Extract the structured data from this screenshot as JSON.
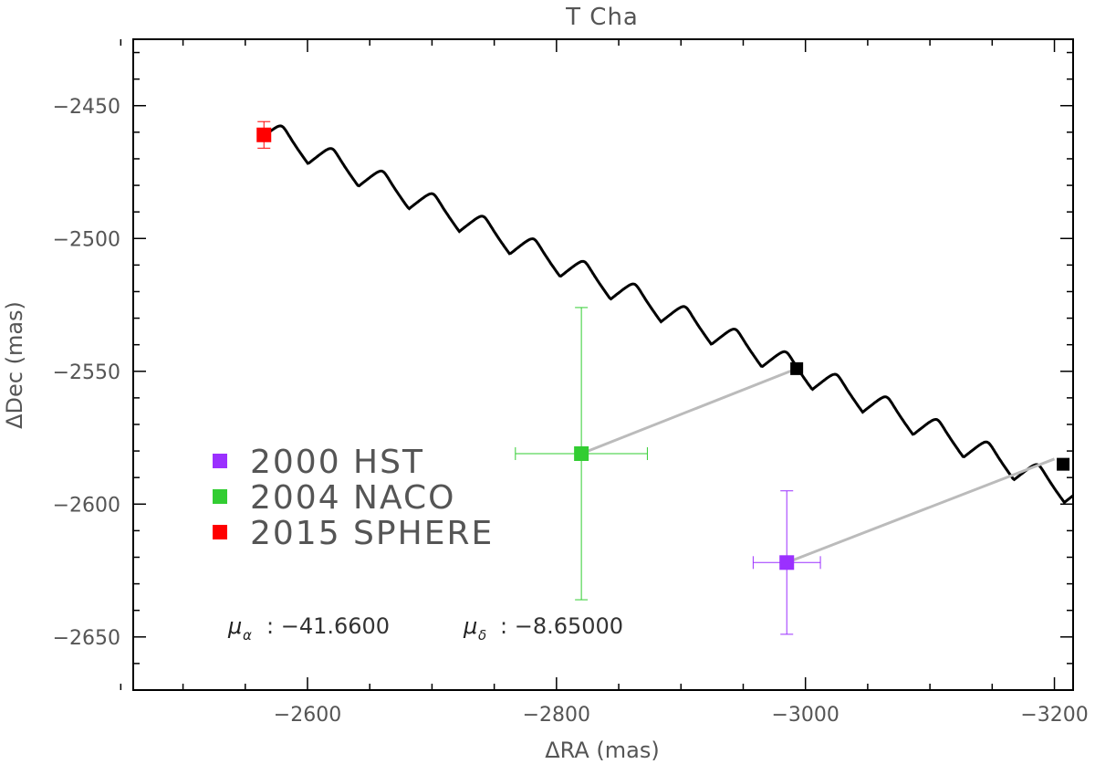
{
  "chart_data": {
    "type": "scatter",
    "title": "T Cha",
    "xlabel": "ΔRA (mas)",
    "ylabel": "ΔDec (mas)",
    "xlim": [
      -2460,
      -3215
    ],
    "ylim": [
      -2670,
      -2425
    ],
    "x_ticks": [
      -2600,
      -2800,
      -3000,
      -3200
    ],
    "x_tick_labels": [
      "−2600",
      "−2800",
      "−3000",
      "−3200"
    ],
    "y_ticks": [
      -2450,
      -2500,
      -2550,
      -2600,
      -2650
    ],
    "y_tick_labels": [
      "−2450",
      "−2500",
      "−2550",
      "−2600",
      "−2650"
    ],
    "grid": false,
    "legend_position": "lower-left",
    "series": [
      {
        "name": "2000 HST",
        "color": "#9b30ff",
        "points": [
          {
            "x": -2985,
            "y": -2622,
            "xerr": 27,
            "yerr": 27
          }
        ]
      },
      {
        "name": "2004 NACO",
        "color": "#32cd32",
        "points": [
          {
            "x": -2820,
            "y": -2581,
            "xerr": 53,
            "yerr": 55
          }
        ]
      },
      {
        "name": "2015 SPHERE",
        "color": "#ff0000",
        "points": [
          {
            "x": -2565,
            "y": -2461,
            "xerr": 5,
            "yerr": 5
          }
        ]
      }
    ],
    "background_track": {
      "color": "#000000",
      "start": {
        "x": -2565,
        "y": -2461
      },
      "loops": 16,
      "end": {
        "x": -3213,
        "y": -2597
      }
    },
    "track_markers": [
      {
        "x": -2993,
        "y": -2549,
        "color": "#000000"
      },
      {
        "x": -3207,
        "y": -2585,
        "color": "#000000"
      }
    ],
    "connectors": [
      {
        "from": {
          "x": -2820,
          "y": -2581
        },
        "to": {
          "x": -2993,
          "y": -2549
        },
        "color": "#bbbbbb"
      },
      {
        "from": {
          "x": -2985,
          "y": -2622
        },
        "to": {
          "x": -3200,
          "y": -2583
        },
        "color": "#bbbbbb"
      }
    ],
    "annotations": {
      "mu_alpha_label": "μ",
      "mu_alpha_sub": "α",
      "mu_alpha_value": ":  −41.6600",
      "mu_delta_label": "μ",
      "mu_delta_sub": "δ",
      "mu_delta_value": ":  −8.65000"
    }
  }
}
